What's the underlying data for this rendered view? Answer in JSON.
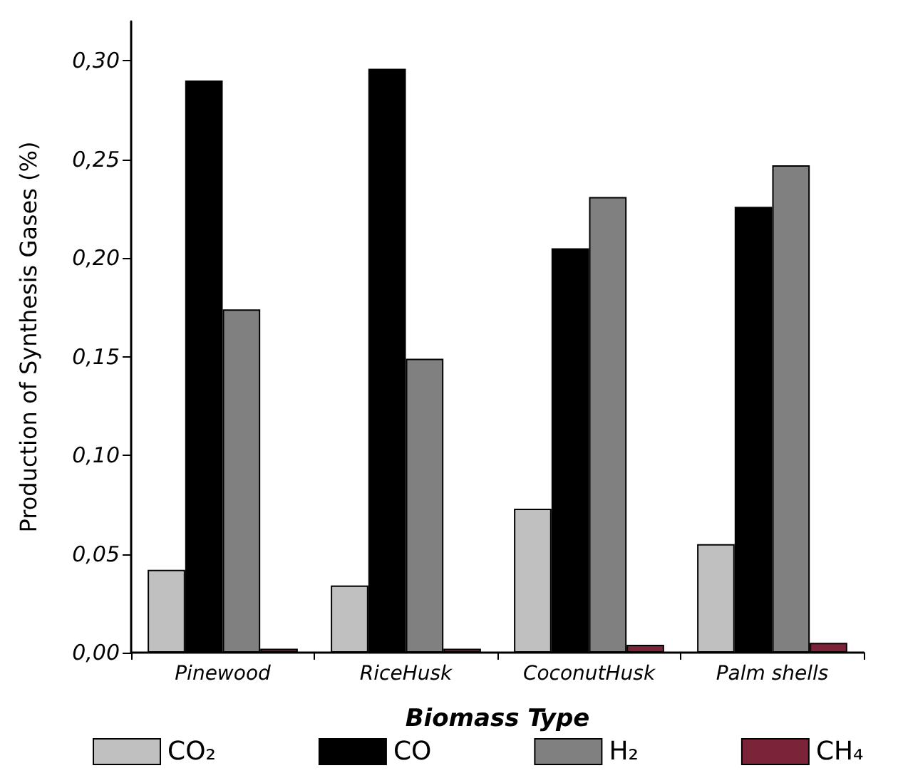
{
  "chart_data": {
    "type": "bar",
    "xlabel": "Biomass Type",
    "ylabel": "Production of Synthesis Gases (%)",
    "categories": [
      "Pinewood",
      "RiceHusk",
      "CoconutHusk",
      "Palm shells"
    ],
    "series": [
      {
        "name": "CO₂",
        "color": "#c0c0c0",
        "values": [
          0.042,
          0.034,
          0.073,
          0.055
        ]
      },
      {
        "name": "CO",
        "color": "#000000",
        "values": [
          0.29,
          0.296,
          0.205,
          0.226
        ]
      },
      {
        "name": "H₂",
        "color": "#808080",
        "values": [
          0.174,
          0.149,
          0.231,
          0.247
        ]
      },
      {
        "name": "CH₄",
        "color": "#7b2339",
        "values": [
          0.002,
          0.002,
          0.004,
          0.005
        ]
      }
    ],
    "ylim": [
      0,
      0.32
    ],
    "yticks": [
      {
        "value": 0,
        "label": "0,00"
      },
      {
        "value": 0.05,
        "label": "0,05"
      },
      {
        "value": 0.1,
        "label": "0,10"
      },
      {
        "value": 0.15,
        "label": "0,15"
      },
      {
        "value": 0.2,
        "label": "0,20"
      },
      {
        "value": 0.25,
        "label": "0,25"
      },
      {
        "value": 0.3,
        "label": "0,30"
      }
    ],
    "grid": false,
    "legend": "bottom"
  }
}
